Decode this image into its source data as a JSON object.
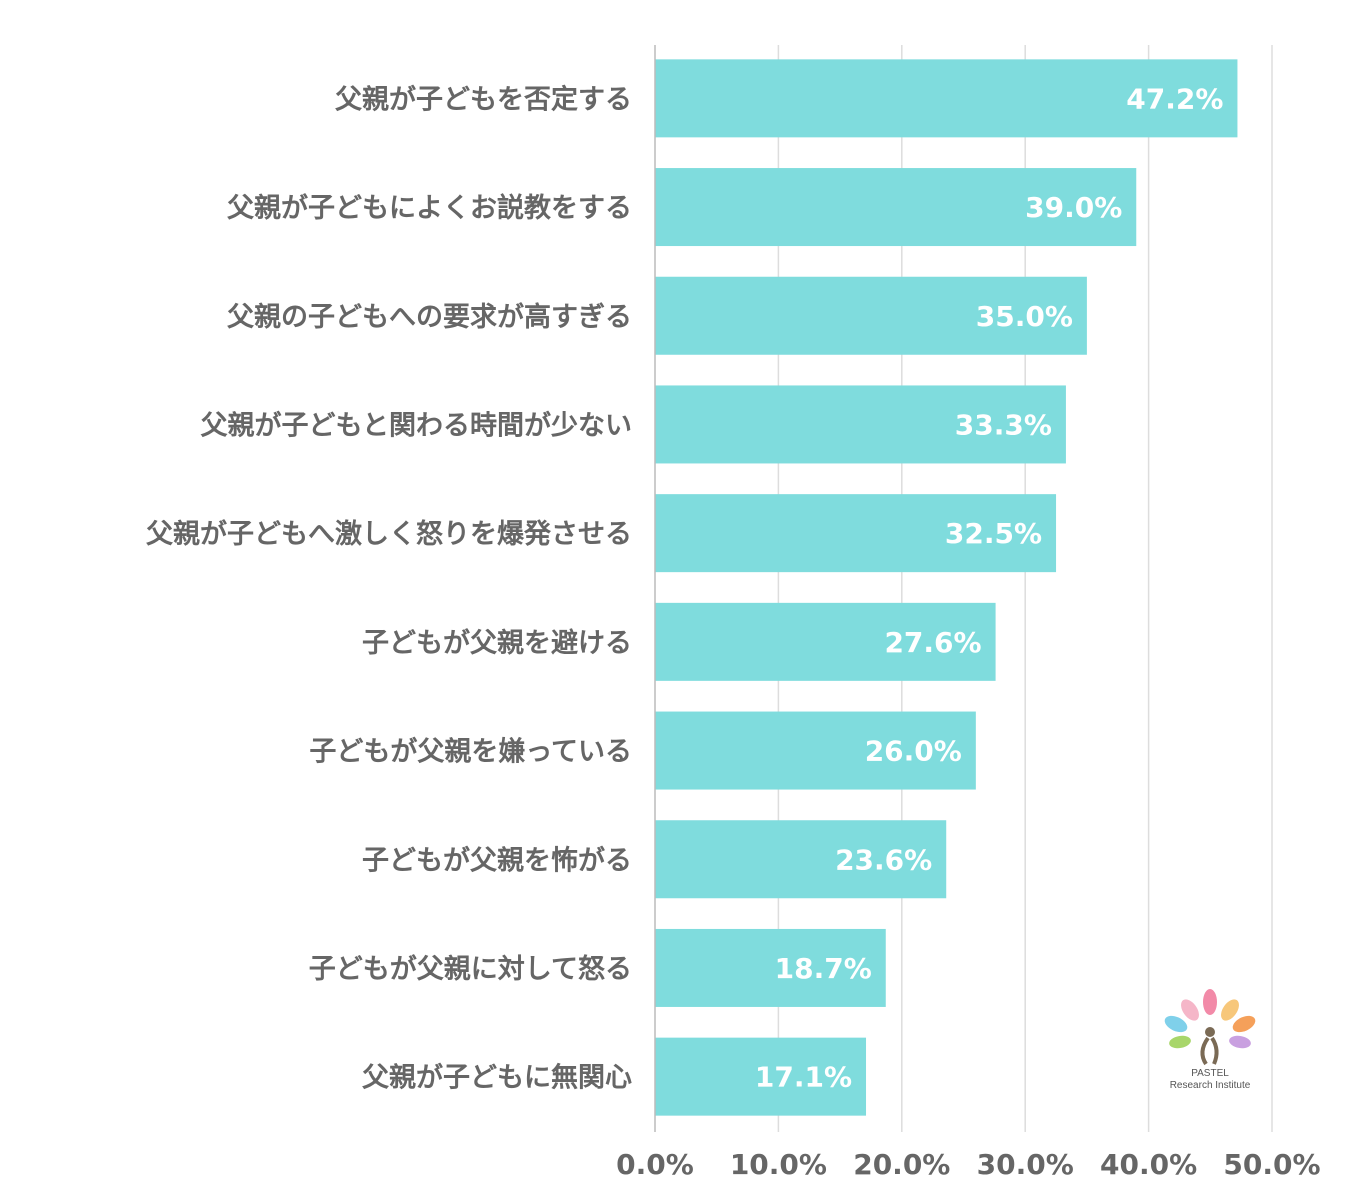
{
  "chart_data": {
    "type": "bar",
    "orientation": "horizontal",
    "categories": [
      "父親が子どもを否定する",
      "父親が子どもによくお説教をする",
      "父親の子どもへの要求が高すぎる",
      "父親が子どもと関わる時間が少ない",
      "父親が子どもへ激しく怒りを爆発させる",
      "子どもが父親を避ける",
      "子どもが父親を嫌っている",
      "子どもが父親を怖がる",
      "子どもが父親に対して怒る",
      "父親が子どもに無関心"
    ],
    "values": [
      47.2,
      39.0,
      35.0,
      33.3,
      32.5,
      27.6,
      26.0,
      23.6,
      18.7,
      17.1
    ],
    "value_labels": [
      "47.2%",
      "39.0%",
      "35.0%",
      "33.3%",
      "32.5%",
      "27.6%",
      "26.0%",
      "23.6%",
      "18.7%",
      "17.1%"
    ],
    "xlim": [
      0,
      50
    ],
    "xticks": [
      0,
      10,
      20,
      30,
      40,
      50
    ],
    "xtick_labels": [
      "0.0%",
      "10.0%",
      "20.0%",
      "30.0%",
      "40.0%",
      "50.0%"
    ],
    "grid": true,
    "bar_color": "#7fdcdd",
    "title": "",
    "xlabel": "",
    "ylabel": ""
  },
  "logo": {
    "line1": "PASTEL",
    "line2": "Research Institute",
    "icon": "tree-logo-icon"
  }
}
